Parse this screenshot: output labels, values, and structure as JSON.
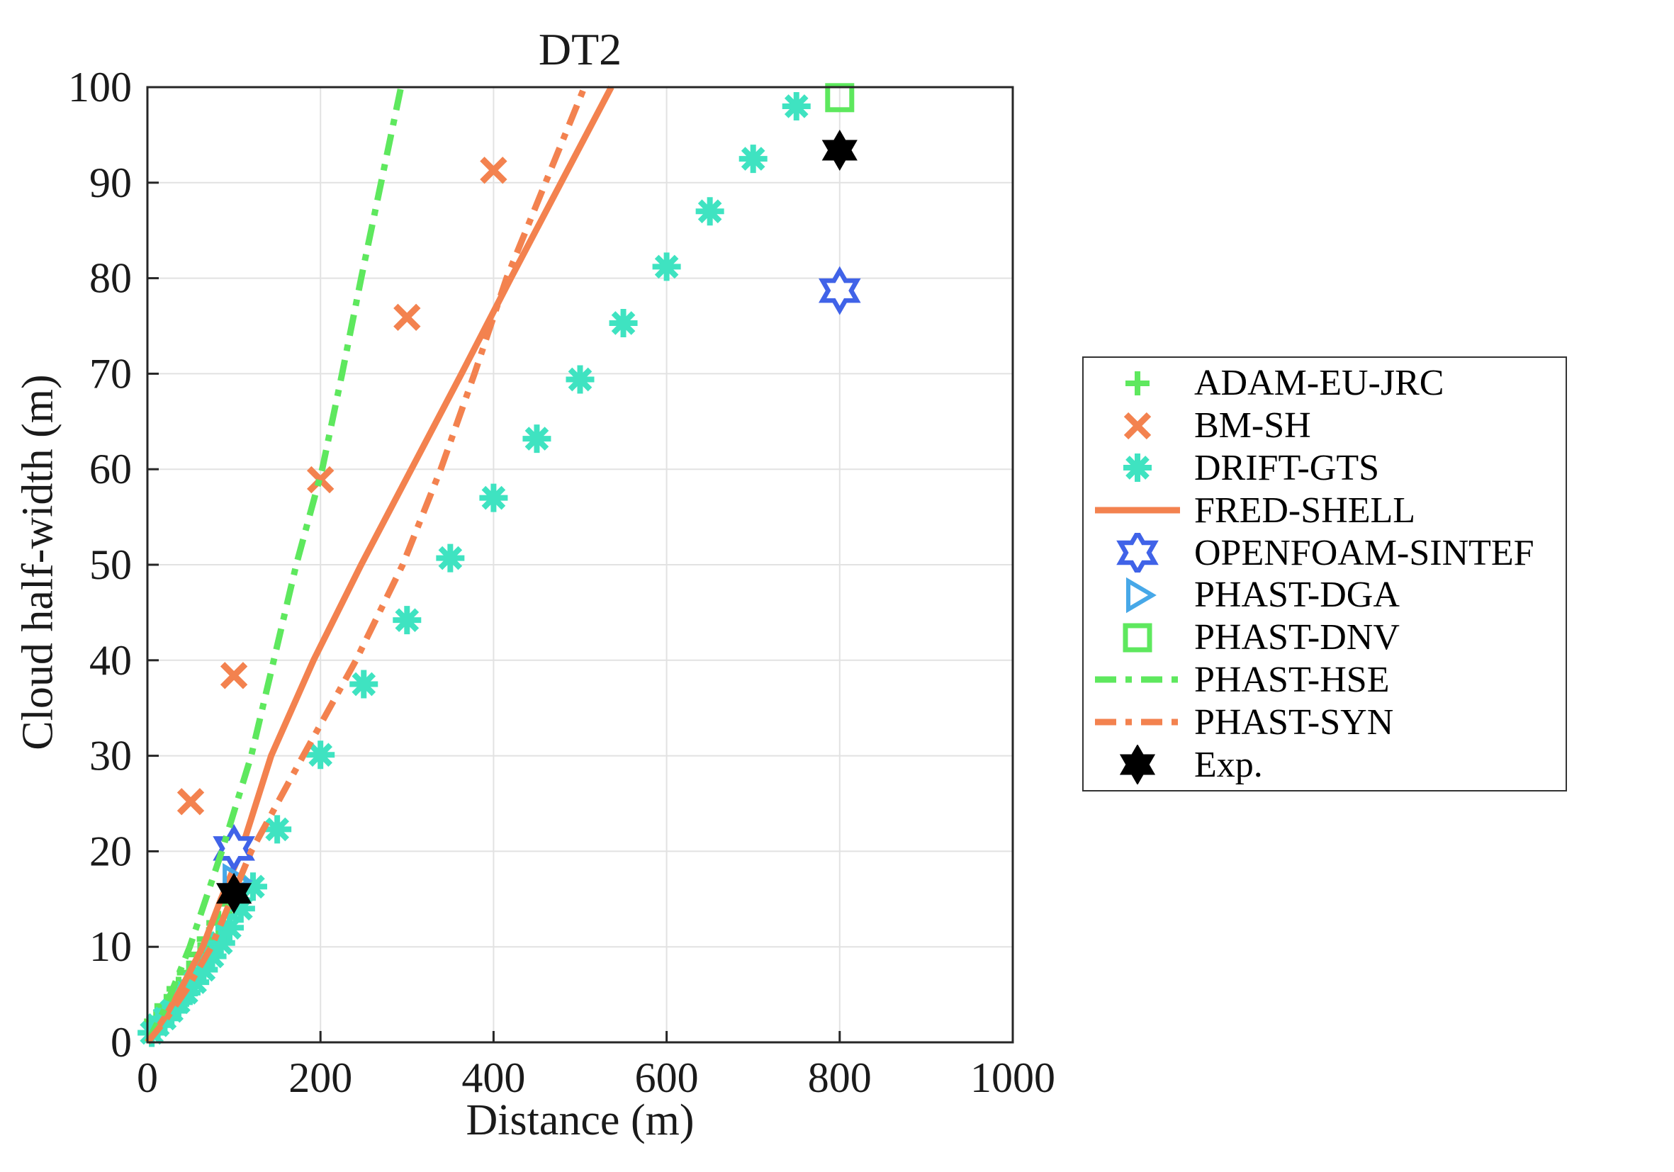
{
  "title": "DT2",
  "chart_data": {
    "type": "line+scatter",
    "title": "DT2",
    "xlabel": "Distance (m)",
    "ylabel": "Cloud half-width (m)",
    "xlim": [
      0,
      1000
    ],
    "ylim": [
      0,
      100
    ],
    "xticks": [
      0,
      200,
      400,
      600,
      800,
      1000
    ],
    "yticks": [
      0,
      10,
      20,
      30,
      40,
      50,
      60,
      70,
      80,
      90,
      100
    ],
    "grid": true,
    "legend_position": "right-outside",
    "axis_color": "#262626",
    "grid_color": "#e2e2e2",
    "series": [
      {
        "name": "ADAM-EU-JRC",
        "kind": "scatter",
        "marker": "plus",
        "color": "#5ee85e",
        "points": [
          [
            10,
            2.2
          ],
          [
            22,
            3.8
          ],
          [
            36,
            5.6
          ],
          [
            48,
            7.3
          ],
          [
            61,
            9.2
          ],
          [
            71,
            10.8
          ],
          [
            82,
            12.5
          ],
          [
            95,
            14.5
          ]
        ]
      },
      {
        "name": "BM-SH",
        "kind": "scatter",
        "marker": "x",
        "color": "#f3824f",
        "points": [
          [
            50,
            25.2
          ],
          [
            100,
            38.4
          ],
          [
            200,
            58.9
          ],
          [
            300,
            75.9
          ],
          [
            400,
            91.3
          ]
        ]
      },
      {
        "name": "DRIFT-GTS",
        "kind": "scatter",
        "marker": "asterisk",
        "color": "#3fe3c1",
        "points": [
          [
            5,
            1.0
          ],
          [
            12,
            1.8
          ],
          [
            20,
            2.5
          ],
          [
            28,
            3.3
          ],
          [
            36,
            4.2
          ],
          [
            45,
            5.2
          ],
          [
            55,
            6.3
          ],
          [
            65,
            7.6
          ],
          [
            75,
            9.0
          ],
          [
            85,
            10.4
          ],
          [
            95,
            12.0
          ],
          [
            108,
            14.0
          ],
          [
            122,
            16.3
          ],
          [
            150,
            22.3
          ],
          [
            200,
            30.1
          ],
          [
            250,
            37.5
          ],
          [
            300,
            44.2
          ],
          [
            350,
            50.7
          ],
          [
            400,
            57.0
          ],
          [
            450,
            63.2
          ],
          [
            500,
            69.4
          ],
          [
            550,
            75.3
          ],
          [
            600,
            81.2
          ],
          [
            650,
            87.0
          ],
          [
            700,
            92.5
          ],
          [
            750,
            98.0
          ]
        ]
      },
      {
        "name": "FRED-SHELL",
        "kind": "line",
        "line_style": "solid",
        "color": "#f3824f",
        "points": [
          [
            0,
            0
          ],
          [
            20,
            2.6
          ],
          [
            40,
            5.8
          ],
          [
            64,
            10
          ],
          [
            85,
            15
          ],
          [
            108,
            20
          ],
          [
            143,
            30
          ],
          [
            192,
            40
          ],
          [
            247,
            50
          ],
          [
            305,
            60
          ],
          [
            363,
            70
          ],
          [
            420,
            80
          ],
          [
            478,
            90
          ],
          [
            536,
            100
          ]
        ]
      },
      {
        "name": "OPENFOAM-SINTEF",
        "kind": "scatter",
        "marker": "hexagram-open",
        "color": "#4063e8",
        "points": [
          [
            100,
            20.3
          ],
          [
            800,
            78.7
          ]
        ]
      },
      {
        "name": "PHAST-DGA",
        "kind": "scatter",
        "marker": "triangle-right",
        "color": "#47a8e8",
        "points": [
          [
            100,
            16.9
          ]
        ]
      },
      {
        "name": "PHAST-DNV",
        "kind": "scatter",
        "marker": "square-open",
        "color": "#5ee85e",
        "points": [
          [
            800,
            98.9
          ]
        ]
      },
      {
        "name": "PHAST-HSE",
        "kind": "line",
        "line_style": "dash-dot",
        "color": "#5ee85e",
        "points": [
          [
            0,
            0
          ],
          [
            20,
            3.5
          ],
          [
            49,
            10
          ],
          [
            86,
            20
          ],
          [
            120,
            30
          ],
          [
            146,
            40
          ],
          [
            172,
            50
          ],
          [
            202,
            60
          ],
          [
            225,
            70
          ],
          [
            247,
            80
          ],
          [
            270,
            90
          ],
          [
            293,
            100
          ]
        ]
      },
      {
        "name": "PHAST-SYN",
        "kind": "line",
        "line_style": "dash-dot",
        "color": "#f3824f",
        "points": [
          [
            0,
            0
          ],
          [
            20,
            2.2
          ],
          [
            45,
            5.5
          ],
          [
            74,
            10
          ],
          [
            120,
            20
          ],
          [
            180,
            30
          ],
          [
            241,
            40
          ],
          [
            295,
            50
          ],
          [
            339,
            60
          ],
          [
            378,
            70
          ],
          [
            415,
            80
          ],
          [
            460,
            90
          ],
          [
            505,
            100
          ]
        ]
      },
      {
        "name": "Exp.",
        "kind": "scatter",
        "marker": "hexagram-filled",
        "color": "#000000",
        "points": [
          [
            100,
            15.6
          ],
          [
            800,
            93.4
          ]
        ]
      }
    ]
  }
}
